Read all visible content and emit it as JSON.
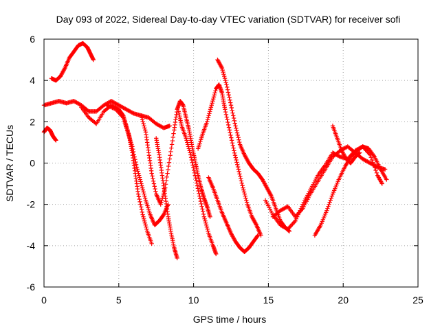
{
  "chart_data": {
    "type": "scatter",
    "title": "Day 093 of 2022, Sidereal Day-to-day VTEC variation (SDTVAR) for receiver sofi",
    "xlabel": "GPS time / hours",
    "ylabel": "SDTVAR / TECUs",
    "xlim": [
      0,
      25
    ],
    "ylim": [
      -6,
      6
    ],
    "xticks": [
      "0",
      "5",
      "10",
      "15",
      "20",
      "25"
    ],
    "yticks": [
      "-6",
      "-4",
      "-2",
      "0",
      "2",
      "4",
      "6"
    ],
    "grid": true,
    "grid_style": "dotted",
    "legend": "none",
    "marker": "+",
    "color": "#ff0000",
    "series": [
      {
        "values": [
          [
            0.0,
            1.5
          ],
          [
            0.2,
            1.7
          ],
          [
            0.4,
            1.6
          ],
          [
            0.6,
            1.3
          ],
          [
            0.8,
            1.1
          ]
        ]
      },
      {
        "values": [
          [
            0.5,
            4.1
          ],
          [
            0.8,
            4.0
          ],
          [
            1.1,
            4.2
          ],
          [
            1.4,
            4.6
          ],
          [
            1.7,
            5.1
          ],
          [
            2.0,
            5.4
          ],
          [
            2.3,
            5.7
          ],
          [
            2.6,
            5.8
          ],
          [
            2.9,
            5.6
          ],
          [
            3.1,
            5.3
          ],
          [
            3.3,
            5.0
          ]
        ]
      },
      {
        "values": [
          [
            0.0,
            2.8
          ],
          [
            0.5,
            2.9
          ],
          [
            1.0,
            3.0
          ],
          [
            1.5,
            2.9
          ],
          [
            2.0,
            3.0
          ],
          [
            2.5,
            2.8
          ],
          [
            3.0,
            2.5
          ],
          [
            3.5,
            2.5
          ],
          [
            4.0,
            2.8
          ],
          [
            4.5,
            3.0
          ],
          [
            5.0,
            2.8
          ],
          [
            5.5,
            2.6
          ],
          [
            6.0,
            2.4
          ],
          [
            6.5,
            2.3
          ],
          [
            7.0,
            2.2
          ],
          [
            7.5,
            1.9
          ],
          [
            8.0,
            1.7
          ],
          [
            8.4,
            1.8
          ]
        ]
      },
      {
        "values": [
          [
            2.5,
            2.7
          ],
          [
            3.0,
            2.2
          ],
          [
            3.5,
            1.9
          ],
          [
            4.0,
            2.5
          ],
          [
            4.5,
            2.8
          ],
          [
            5.0,
            2.6
          ],
          [
            5.3,
            2.3
          ],
          [
            5.5,
            1.8
          ],
          [
            5.7,
            1.3
          ],
          [
            5.9,
            0.5
          ],
          [
            6.1,
            -0.5
          ],
          [
            6.3,
            -1.5
          ],
          [
            6.6,
            -2.5
          ],
          [
            6.9,
            -3.3
          ],
          [
            7.2,
            -3.9
          ]
        ]
      },
      {
        "values": [
          [
            4.2,
            2.8
          ],
          [
            4.8,
            2.6
          ],
          [
            5.3,
            2.2
          ],
          [
            5.6,
            1.5
          ],
          [
            5.9,
            0.8
          ],
          [
            6.2,
            -0.2
          ],
          [
            6.5,
            -1.0
          ],
          [
            6.8,
            -1.8
          ],
          [
            7.1,
            -2.5
          ],
          [
            7.4,
            -3.0
          ],
          [
            7.7,
            -2.8
          ],
          [
            8.0,
            -2.5
          ],
          [
            8.3,
            -2.0
          ]
        ]
      },
      {
        "values": [
          [
            6.5,
            2.3
          ],
          [
            6.8,
            1.5
          ],
          [
            7.0,
            0.5
          ],
          [
            7.2,
            -0.5
          ],
          [
            7.5,
            -1.5
          ],
          [
            7.8,
            -2.0
          ],
          [
            8.1,
            -1.2
          ],
          [
            8.4,
            0.2
          ],
          [
            8.7,
            1.6
          ],
          [
            8.9,
            2.6
          ],
          [
            9.1,
            3.0
          ],
          [
            9.3,
            2.8
          ],
          [
            9.5,
            2.2
          ],
          [
            9.7,
            1.6
          ],
          [
            9.9,
            0.8
          ],
          [
            10.1,
            0.1
          ],
          [
            10.3,
            -0.6
          ],
          [
            10.5,
            -1.2
          ],
          [
            10.7,
            -1.7
          ],
          [
            10.9,
            -2.1
          ],
          [
            11.1,
            -2.6
          ]
        ]
      },
      {
        "values": [
          [
            7.5,
            1.2
          ],
          [
            7.7,
            0.4
          ],
          [
            7.9,
            -0.6
          ],
          [
            8.1,
            -1.6
          ],
          [
            8.3,
            -2.6
          ],
          [
            8.5,
            -3.4
          ],
          [
            8.7,
            -4.1
          ],
          [
            8.9,
            -4.6
          ]
        ]
      },
      {
        "values": [
          [
            9.0,
            2.5
          ],
          [
            9.2,
            1.8
          ],
          [
            9.5,
            1.2
          ],
          [
            9.8,
            0.4
          ],
          [
            10.1,
            -0.6
          ],
          [
            10.4,
            -1.6
          ],
          [
            10.7,
            -2.6
          ],
          [
            11.0,
            -3.4
          ],
          [
            11.3,
            -4.0
          ],
          [
            11.5,
            -4.4
          ]
        ]
      },
      {
        "values": [
          [
            10.3,
            0.7
          ],
          [
            10.6,
            1.4
          ],
          [
            10.9,
            2.0
          ],
          [
            11.2,
            2.8
          ],
          [
            11.5,
            3.6
          ],
          [
            11.7,
            3.8
          ],
          [
            11.9,
            3.4
          ],
          [
            12.1,
            2.6
          ],
          [
            12.4,
            1.6
          ],
          [
            12.7,
            0.6
          ],
          [
            13.0,
            -0.3
          ],
          [
            13.3,
            -1.2
          ],
          [
            13.6,
            -2.0
          ],
          [
            13.9,
            -2.6
          ],
          [
            14.2,
            -3.0
          ],
          [
            14.5,
            -3.5
          ]
        ]
      },
      {
        "values": [
          [
            11.6,
            5.0
          ],
          [
            11.9,
            4.6
          ],
          [
            12.2,
            3.8
          ],
          [
            12.5,
            2.8
          ],
          [
            12.8,
            1.8
          ],
          [
            13.1,
            0.9
          ],
          [
            13.4,
            0.4
          ],
          [
            13.7,
            0.0
          ],
          [
            14.0,
            -0.3
          ],
          [
            14.3,
            -0.5
          ],
          [
            14.6,
            -0.8
          ],
          [
            14.9,
            -1.2
          ],
          [
            15.2,
            -1.6
          ],
          [
            15.5,
            -2.2
          ],
          [
            15.8,
            -2.8
          ],
          [
            16.1,
            -3.1
          ],
          [
            16.4,
            -3.3
          ]
        ]
      },
      {
        "values": [
          [
            11.0,
            -0.7
          ],
          [
            11.3,
            -1.2
          ],
          [
            11.6,
            -1.8
          ],
          [
            11.9,
            -2.4
          ],
          [
            12.2,
            -2.9
          ],
          [
            12.5,
            -3.4
          ],
          [
            12.8,
            -3.8
          ],
          [
            13.1,
            -4.1
          ],
          [
            13.4,
            -4.3
          ],
          [
            13.7,
            -4.1
          ],
          [
            14.0,
            -3.8
          ],
          [
            14.3,
            -3.5
          ]
        ]
      },
      {
        "values": [
          [
            15.3,
            -2.6
          ],
          [
            15.8,
            -2.3
          ],
          [
            16.3,
            -2.1
          ],
          [
            16.8,
            -2.6
          ],
          [
            17.3,
            -2.2
          ],
          [
            17.8,
            -1.5
          ],
          [
            18.3,
            -0.9
          ],
          [
            18.8,
            -0.3
          ],
          [
            19.3,
            0.3
          ],
          [
            19.8,
            0.6
          ],
          [
            20.3,
            0.8
          ],
          [
            20.8,
            0.5
          ],
          [
            21.3,
            0.2
          ],
          [
            21.8,
            0.0
          ],
          [
            22.3,
            -0.2
          ],
          [
            22.8,
            -0.3
          ]
        ]
      },
      {
        "values": [
          [
            14.8,
            -1.8
          ],
          [
            15.3,
            -2.5
          ],
          [
            15.8,
            -3.0
          ],
          [
            16.3,
            -3.2
          ],
          [
            16.8,
            -2.8
          ],
          [
            17.3,
            -2.0
          ],
          [
            17.8,
            -1.3
          ],
          [
            18.3,
            -0.6
          ],
          [
            18.8,
            -0.1
          ],
          [
            19.3,
            0.5
          ],
          [
            19.8,
            0.3
          ],
          [
            20.3,
            0.2
          ],
          [
            20.8,
            0.6
          ],
          [
            21.3,
            0.8
          ],
          [
            21.8,
            0.4
          ],
          [
            22.3,
            -0.6
          ],
          [
            22.6,
            -1.0
          ]
        ]
      },
      {
        "values": [
          [
            18.1,
            -3.5
          ],
          [
            18.5,
            -3.0
          ],
          [
            18.9,
            -2.3
          ],
          [
            19.3,
            -1.5
          ],
          [
            19.7,
            -0.8
          ],
          [
            20.1,
            -0.2
          ],
          [
            20.5,
            0.3
          ],
          [
            20.9,
            0.6
          ],
          [
            21.3,
            0.8
          ],
          [
            21.7,
            0.7
          ],
          [
            22.1,
            0.3
          ],
          [
            22.5,
            -0.3
          ],
          [
            22.9,
            -0.8
          ]
        ]
      },
      {
        "values": [
          [
            19.3,
            1.8
          ],
          [
            19.6,
            1.2
          ],
          [
            19.9,
            0.6
          ],
          [
            20.2,
            0.2
          ],
          [
            20.5,
            0.0
          ],
          [
            20.8,
            0.3
          ],
          [
            21.1,
            0.5
          ]
        ]
      }
    ]
  }
}
